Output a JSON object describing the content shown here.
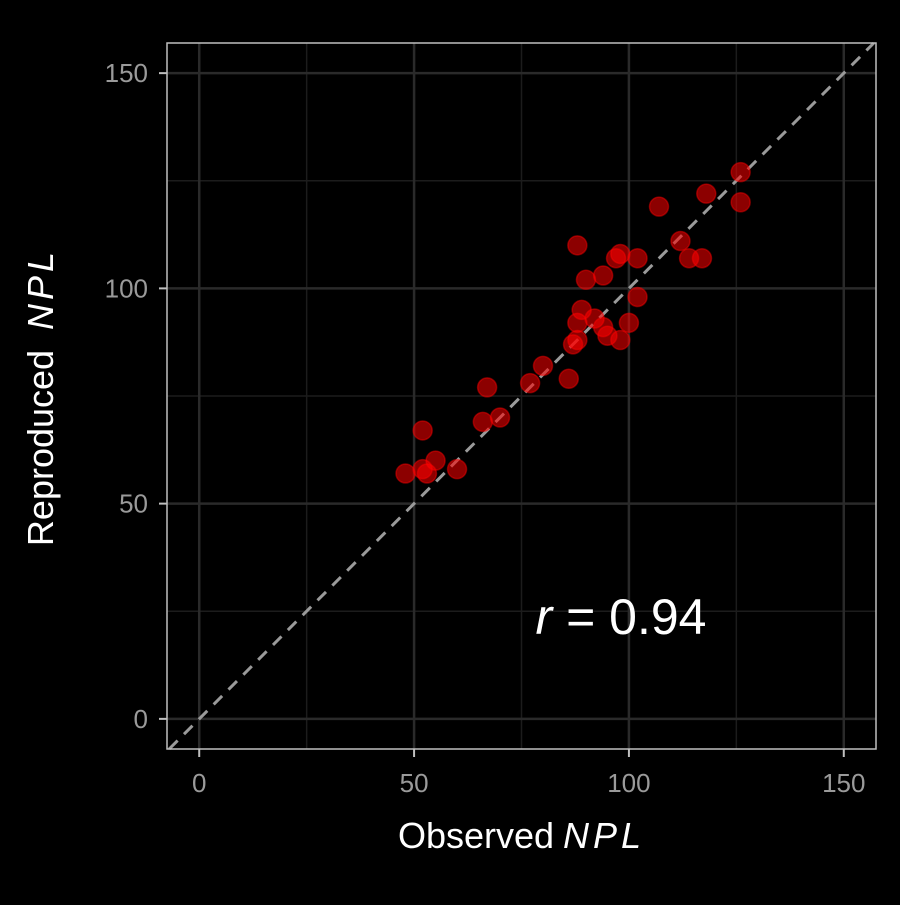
{
  "chart_data": {
    "type": "scatter",
    "xlabel": {
      "prefix": "Observed",
      "italic": "NPL"
    },
    "ylabel": {
      "prefix": "Reproduced",
      "italic": "NPL"
    },
    "xlim": [
      -7.5,
      157.5
    ],
    "ylim": [
      -7,
      157
    ],
    "x_ticks": [
      0,
      50,
      100,
      150
    ],
    "y_ticks": [
      0,
      50,
      100,
      150
    ],
    "x_tick_labels": [
      "0",
      "50",
      "100",
      "150"
    ],
    "y_tick_labels": [
      "0",
      "50",
      "100",
      "150"
    ],
    "grid": true,
    "reference_line": {
      "type": "identity",
      "style": "dashed",
      "color": "#9a9a9a"
    },
    "annotation": {
      "italic": "r",
      "text": " = 0.94"
    },
    "point_color": "#ff0000",
    "background_color": "#000000",
    "panel_border_color": "#bfbfbf",
    "grid_color": "#2a2a2a",
    "points": [
      {
        "x": 48,
        "y": 57
      },
      {
        "x": 52,
        "y": 67
      },
      {
        "x": 52,
        "y": 58
      },
      {
        "x": 53,
        "y": 57
      },
      {
        "x": 55,
        "y": 60
      },
      {
        "x": 60,
        "y": 58
      },
      {
        "x": 66,
        "y": 69
      },
      {
        "x": 67,
        "y": 77
      },
      {
        "x": 70,
        "y": 70
      },
      {
        "x": 77,
        "y": 78
      },
      {
        "x": 80,
        "y": 82
      },
      {
        "x": 86,
        "y": 79
      },
      {
        "x": 87,
        "y": 87
      },
      {
        "x": 88,
        "y": 88
      },
      {
        "x": 88,
        "y": 92
      },
      {
        "x": 88,
        "y": 110
      },
      {
        "x": 89,
        "y": 95
      },
      {
        "x": 90,
        "y": 102
      },
      {
        "x": 92,
        "y": 93
      },
      {
        "x": 94,
        "y": 103
      },
      {
        "x": 94,
        "y": 91
      },
      {
        "x": 95,
        "y": 89
      },
      {
        "x": 97,
        "y": 107
      },
      {
        "x": 98,
        "y": 108
      },
      {
        "x": 98,
        "y": 88
      },
      {
        "x": 100,
        "y": 92
      },
      {
        "x": 102,
        "y": 107
      },
      {
        "x": 102,
        "y": 98
      },
      {
        "x": 107,
        "y": 119
      },
      {
        "x": 112,
        "y": 111
      },
      {
        "x": 114,
        "y": 107
      },
      {
        "x": 117,
        "y": 107
      },
      {
        "x": 118,
        "y": 122
      },
      {
        "x": 126,
        "y": 127
      },
      {
        "x": 126,
        "y": 120
      }
    ]
  }
}
